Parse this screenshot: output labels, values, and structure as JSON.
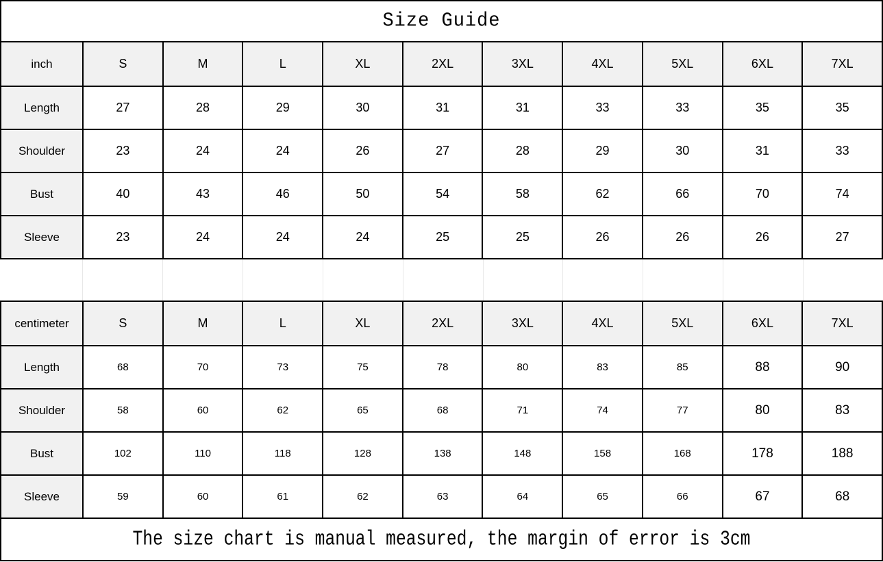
{
  "title": "Size Guide",
  "footer_note": "The size chart is manual measured, the margin of error is 3cm",
  "colors": {
    "border": "#000000",
    "header_bg": "#f1f1f1",
    "spacer_line": "#e8e8e8",
    "text": "#000000"
  },
  "chart_data": [
    {
      "type": "table",
      "title": "Size Guide",
      "unit": "inch",
      "columns": [
        "inch",
        "S",
        "M",
        "L",
        "XL",
        "2XL",
        "3XL",
        "4XL",
        "5XL",
        "6XL",
        "7XL"
      ],
      "rows": [
        {
          "label": "Length",
          "values": [
            27,
            28,
            29,
            30,
            31,
            31,
            33,
            33,
            35,
            35
          ]
        },
        {
          "label": "Shoulder",
          "values": [
            23,
            24,
            24,
            26,
            27,
            28,
            29,
            30,
            31,
            33
          ]
        },
        {
          "label": "Bust",
          "values": [
            40,
            43,
            46,
            50,
            54,
            58,
            62,
            66,
            70,
            74
          ]
        },
        {
          "label": "Sleeve",
          "values": [
            23,
            24,
            24,
            24,
            25,
            25,
            26,
            26,
            26,
            27
          ]
        }
      ]
    },
    {
      "type": "table",
      "title": "Size Guide",
      "unit": "centimeter",
      "columns": [
        "centimeter",
        "S",
        "M",
        "L",
        "XL",
        "2XL",
        "3XL",
        "4XL",
        "5XL",
        "6XL",
        "7XL"
      ],
      "rows": [
        {
          "label": "Length",
          "values": [
            68,
            70,
            73,
            75,
            78,
            80,
            83,
            85,
            88,
            90
          ]
        },
        {
          "label": "Shoulder",
          "values": [
            58,
            60,
            62,
            65,
            68,
            71,
            74,
            77,
            80,
            83
          ]
        },
        {
          "label": "Bust",
          "values": [
            102,
            110,
            118,
            128,
            138,
            148,
            158,
            168,
            178,
            188
          ]
        },
        {
          "label": "Sleeve",
          "values": [
            59,
            60,
            61,
            62,
            63,
            64,
            65,
            66,
            67,
            68
          ]
        }
      ]
    }
  ]
}
